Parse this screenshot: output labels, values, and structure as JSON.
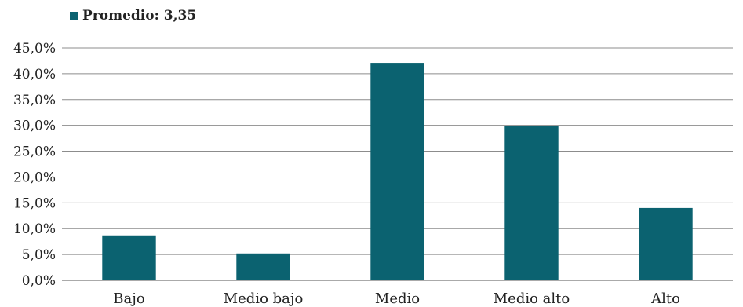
{
  "chart_data": {
    "type": "bar",
    "legend_label": "Promedio: 3,35",
    "categories": [
      "Bajo",
      "Medio bajo",
      "Medio",
      "Medio alto",
      "Alto"
    ],
    "series": [
      {
        "name": "Promedio: 3,35",
        "values": [
          8.7,
          5.2,
          42.1,
          29.8,
          14.0
        ]
      }
    ],
    "ylim": [
      0,
      45
    ],
    "yticks": [
      0,
      5,
      10,
      15,
      20,
      25,
      30,
      35,
      40,
      45
    ],
    "ytick_labels": [
      "0,0%",
      "5,0%",
      "10,0%",
      "15,0%",
      "20,0%",
      "25,0%",
      "30,0%",
      "35,0%",
      "40,0%",
      "45,0%"
    ],
    "grid": true,
    "legend_position": "top-left",
    "bar_color": "#0b6270",
    "title": "",
    "xlabel": "",
    "ylabel": ""
  }
}
